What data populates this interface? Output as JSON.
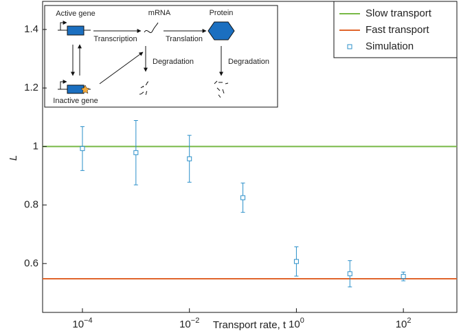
{
  "chart_data": {
    "type": "scatter",
    "x_label": "Transport rate, t",
    "y_label": "L",
    "xlog": true,
    "xlim": [
      1.8e-05,
      1000
    ],
    "xticks": [
      {
        "value": 0.0001,
        "label": "10−4"
      },
      {
        "value": 0.01,
        "label": "10−2"
      },
      {
        "value": 1,
        "label": "100"
      },
      {
        "value": 100,
        "label": "102"
      }
    ],
    "ylim": [
      0.433,
      1.496
    ],
    "yticks": [
      0.6,
      0.8,
      1,
      1.2,
      1.4
    ],
    "x": [
      0.0001,
      0.001,
      0.01,
      0.1,
      1,
      10,
      100
    ],
    "hlines": [
      {
        "name": "Slow transport",
        "color": "#77b845",
        "value": 1
      },
      {
        "name": "Fast transport",
        "color": "#e0642a",
        "value": 0.548
      }
    ],
    "series": [
      {
        "name": "Simulation",
        "color": "#2a8fc9",
        "values": [
          0.993,
          0.979,
          0.958,
          0.825,
          0.607,
          0.565,
          0.556
        ],
        "errors": [
          0.075,
          0.11,
          0.08,
          0.05,
          0.05,
          0.045,
          0.015
        ]
      }
    ],
    "legend": "upper right"
  },
  "inset": {
    "active_gene": "Active gene",
    "mrna": "mRNA",
    "protein": "Protein",
    "transcription": "Transcription",
    "translation": "Translation",
    "degradation_mrna": "Degradation",
    "degradation_protein": "Degradation",
    "inactive_gene": "Inactive gene"
  }
}
